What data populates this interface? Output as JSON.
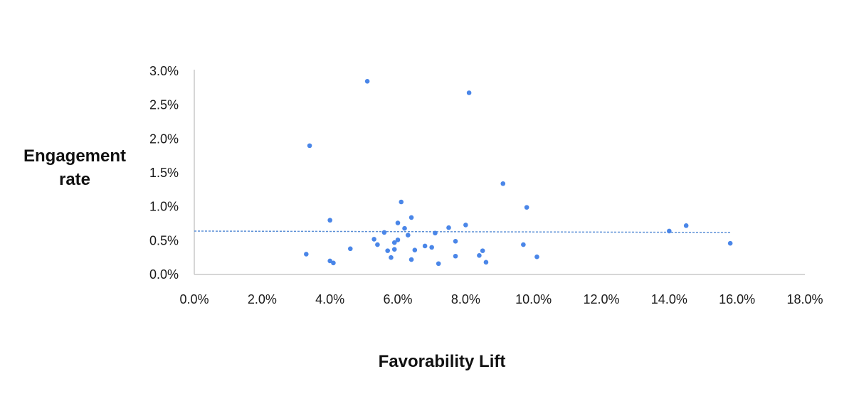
{
  "chart_data": {
    "type": "scatter",
    "title": "",
    "xlabel": "Favorability Lift",
    "ylabel_lines": [
      "Engagement",
      "rate"
    ],
    "xlim": [
      0,
      18
    ],
    "ylim": [
      0,
      3
    ],
    "x_ticks": [
      "0.0%",
      "2.0%",
      "4.0%",
      "6.0%",
      "8.0%",
      "10.0%",
      "12.0%",
      "14.0%",
      "16.0%",
      "18.0%"
    ],
    "y_ticks": [
      "0.0%",
      "0.5%",
      "1.0%",
      "1.5%",
      "2.0%",
      "2.5%",
      "3.0%"
    ],
    "grid": false,
    "legend": "none",
    "colors": {
      "points": "#4a86e8",
      "trendline": "#5b8fd6",
      "axis": "#c8c8c8"
    },
    "trendline": {
      "style": "dashed",
      "x": [
        0,
        15.8
      ],
      "y": [
        0.64,
        0.62
      ]
    },
    "series": [
      {
        "points": [
          [
            3.3,
            0.3
          ],
          [
            3.4,
            1.9
          ],
          [
            4.0,
            0.8
          ],
          [
            4.0,
            0.2
          ],
          [
            4.1,
            0.17
          ],
          [
            4.6,
            0.38
          ],
          [
            5.1,
            2.85
          ],
          [
            5.3,
            0.52
          ],
          [
            5.4,
            0.44
          ],
          [
            5.6,
            0.62
          ],
          [
            5.7,
            0.35
          ],
          [
            5.8,
            0.25
          ],
          [
            5.9,
            0.47
          ],
          [
            5.9,
            0.37
          ],
          [
            6.0,
            0.76
          ],
          [
            6.0,
            0.51
          ],
          [
            6.1,
            1.07
          ],
          [
            6.2,
            0.68
          ],
          [
            6.3,
            0.58
          ],
          [
            6.4,
            0.84
          ],
          [
            6.4,
            0.22
          ],
          [
            6.5,
            0.36
          ],
          [
            6.8,
            0.42
          ],
          [
            7.0,
            0.4
          ],
          [
            7.1,
            0.61
          ],
          [
            7.2,
            0.16
          ],
          [
            7.5,
            0.69
          ],
          [
            7.7,
            0.49
          ],
          [
            7.7,
            0.27
          ],
          [
            8.0,
            0.73
          ],
          [
            8.1,
            2.68
          ],
          [
            8.4,
            0.28
          ],
          [
            8.5,
            0.35
          ],
          [
            8.6,
            0.18
          ],
          [
            9.1,
            1.34
          ],
          [
            9.7,
            0.44
          ],
          [
            9.8,
            0.99
          ],
          [
            10.1,
            0.26
          ],
          [
            14.0,
            0.64
          ],
          [
            14.5,
            0.72
          ],
          [
            15.8,
            0.46
          ]
        ]
      }
    ]
  }
}
